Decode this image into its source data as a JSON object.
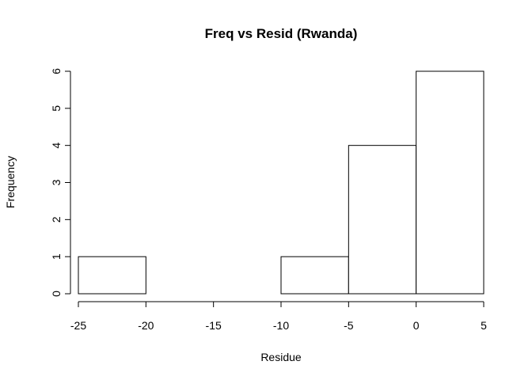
{
  "chart_data": {
    "type": "bar",
    "title": "Freq vs Resid (Rwanda)",
    "xlabel": "Residue",
    "ylabel": "Frequency",
    "bins": [
      {
        "from": -25,
        "to": -20,
        "count": 1
      },
      {
        "from": -20,
        "to": -15,
        "count": 0
      },
      {
        "from": -15,
        "to": -10,
        "count": 0
      },
      {
        "from": -10,
        "to": -5,
        "count": 1
      },
      {
        "from": -5,
        "to": 0,
        "count": 4
      },
      {
        "from": 0,
        "to": 5,
        "count": 6
      }
    ],
    "xlim": [
      -25,
      5
    ],
    "ylim": [
      0,
      6
    ],
    "x_ticks": [
      -25,
      -20,
      -15,
      -10,
      -5,
      0,
      5
    ],
    "x_tick_labels": [
      "-25",
      "-20",
      "-15",
      "-10",
      "-5",
      "0",
      "5"
    ],
    "y_ticks": [
      0,
      1,
      2,
      3,
      4,
      5,
      6
    ],
    "y_tick_labels": [
      "0",
      "1",
      "2",
      "3",
      "4",
      "5",
      "6"
    ],
    "grid": false,
    "legend": "none",
    "colors": {
      "bar_fill": "#ffffff",
      "bar_stroke": "#000000",
      "axis": "#000000"
    }
  }
}
